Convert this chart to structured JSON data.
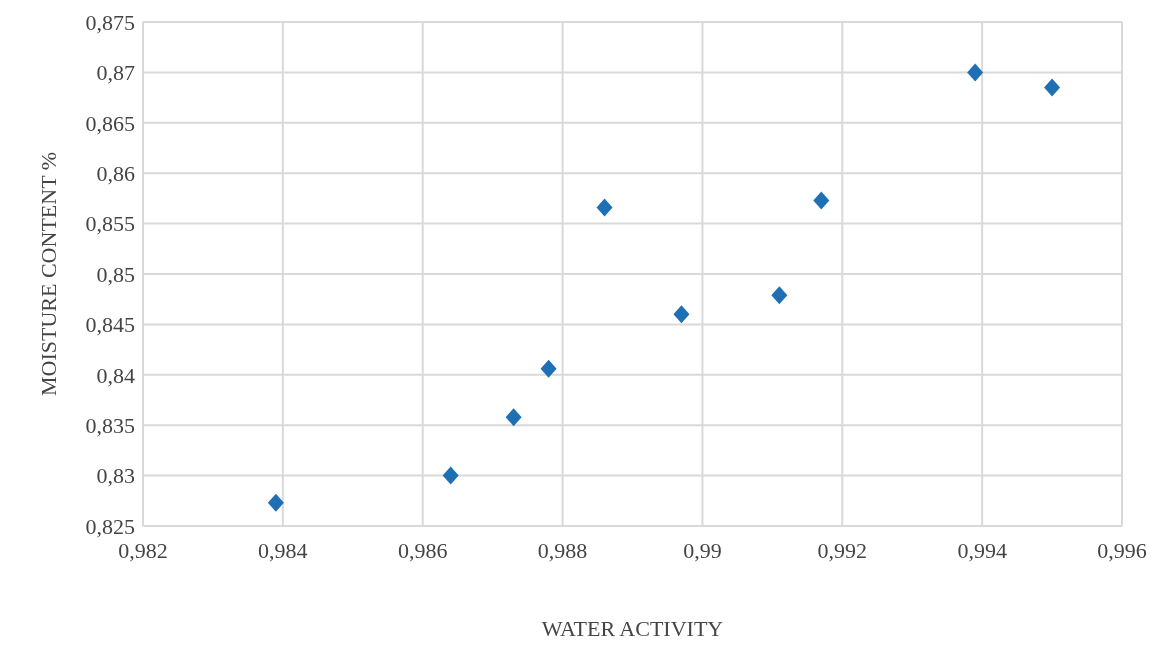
{
  "chart_data": {
    "type": "scatter",
    "xlabel": "WATER ACTIVITY",
    "ylabel": "MOISTURE CONTENT %",
    "x": [
      0.9839,
      0.9864,
      0.9873,
      0.9878,
      0.9886,
      0.9897,
      0.9911,
      0.9917,
      0.9939,
      0.995
    ],
    "series": [
      {
        "color": "#1f6fb5",
        "values": [
          0.8273,
          0.83,
          0.8358,
          0.8406,
          0.8566,
          0.846,
          0.8479,
          0.8573,
          0.87,
          0.8685
        ]
      }
    ],
    "xlim": [
      0.982,
      0.996
    ],
    "xticks": [
      {
        "value": 0.982,
        "label": "0,982"
      },
      {
        "value": 0.984,
        "label": "0,984"
      },
      {
        "value": 0.986,
        "label": "0,986"
      },
      {
        "value": 0.988,
        "label": "0,988"
      },
      {
        "value": 0.99,
        "label": "0,99"
      },
      {
        "value": 0.992,
        "label": "0,992"
      },
      {
        "value": 0.994,
        "label": "0,994"
      },
      {
        "value": 0.996,
        "label": "0,996"
      }
    ],
    "ylim": [
      0.825,
      0.875
    ],
    "yticks": [
      {
        "value": 0.825,
        "label": "0,825"
      },
      {
        "value": 0.83,
        "label": "0,83"
      },
      {
        "value": 0.835,
        "label": "0,835"
      },
      {
        "value": 0.84,
        "label": "0,84"
      },
      {
        "value": 0.845,
        "label": "0,845"
      },
      {
        "value": 0.85,
        "label": "0,85"
      },
      {
        "value": 0.855,
        "label": "0,855"
      },
      {
        "value": 0.86,
        "label": "0,86"
      },
      {
        "value": 0.865,
        "label": "0,865"
      },
      {
        "value": 0.87,
        "label": "0,87"
      },
      {
        "value": 0.875,
        "label": "0,875"
      }
    ],
    "grid": true,
    "marker": "diamond"
  }
}
